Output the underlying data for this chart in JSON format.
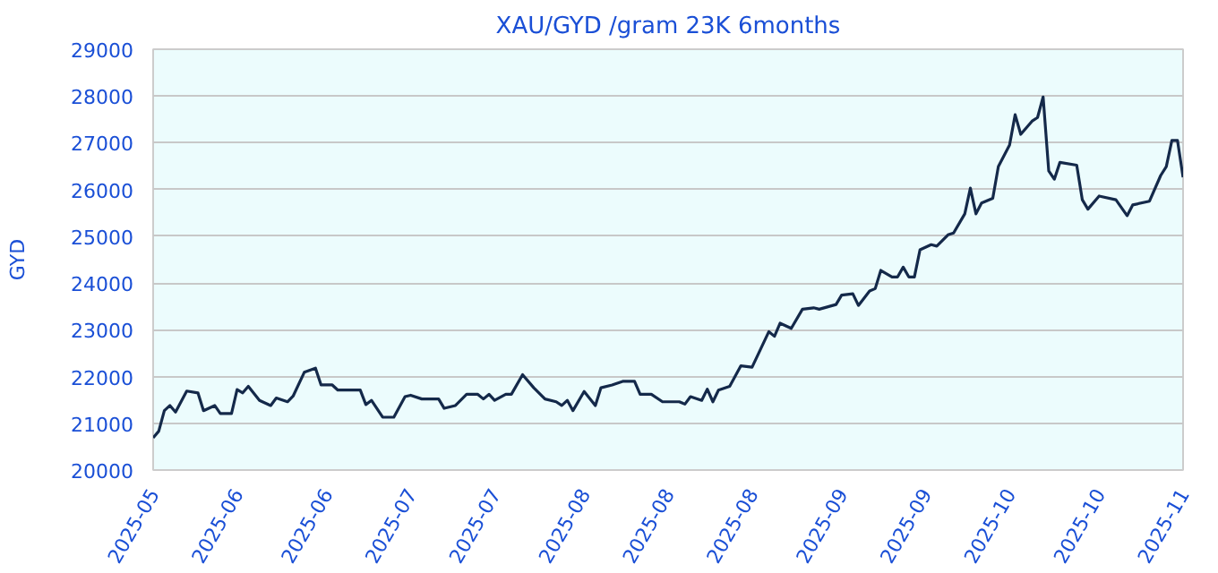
{
  "chart_data": {
    "type": "line",
    "title": "XAU/GYD /gram 23K 6months",
    "ylabel": "GYD",
    "xlim": [
      "2025-05-05",
      "2025-11-05"
    ],
    "ylim": [
      20000,
      29000
    ],
    "xticks": [
      {
        "value": "2025-05-05",
        "label": "2025-05"
      },
      {
        "value": "2025-05-20",
        "label": "2025-06"
      },
      {
        "value": "2025-06-05",
        "label": "2025-06"
      },
      {
        "value": "2025-06-20",
        "label": "2025-07"
      },
      {
        "value": "2025-07-05",
        "label": "2025-07"
      },
      {
        "value": "2025-07-21",
        "label": "2025-08"
      },
      {
        "value": "2025-08-05",
        "label": "2025-08"
      },
      {
        "value": "2025-08-20",
        "label": "2025-08"
      },
      {
        "value": "2025-09-05",
        "label": "2025-09"
      },
      {
        "value": "2025-09-20",
        "label": "2025-09"
      },
      {
        "value": "2025-10-05",
        "label": "2025-10"
      },
      {
        "value": "2025-10-21",
        "label": "2025-10"
      },
      {
        "value": "2025-11-05",
        "label": "2025-11"
      }
    ],
    "yticks": [
      20000,
      21000,
      22000,
      23000,
      24000,
      25000,
      26000,
      27000,
      28000,
      29000
    ],
    "grid": "y",
    "marker": "none",
    "line_style": "solid",
    "series": [
      {
        "color": "#14294a",
        "x": [
          "2025-05-05",
          "2025-05-06",
          "2025-05-07",
          "2025-05-08",
          "2025-05-09",
          "2025-05-11",
          "2025-05-13",
          "2025-05-14",
          "2025-05-16",
          "2025-05-17",
          "2025-05-19",
          "2025-05-20",
          "2025-05-21",
          "2025-05-22",
          "2025-05-24",
          "2025-05-26",
          "2025-05-27",
          "2025-05-29",
          "2025-05-30",
          "2025-06-01",
          "2025-06-03",
          "2025-06-04",
          "2025-06-06",
          "2025-06-07",
          "2025-06-11",
          "2025-06-12",
          "2025-06-13",
          "2025-06-15",
          "2025-06-17",
          "2025-06-19",
          "2025-06-20",
          "2025-06-22",
          "2025-06-25",
          "2025-06-26",
          "2025-06-28",
          "2025-06-30",
          "2025-07-02",
          "2025-07-03",
          "2025-07-04",
          "2025-07-05",
          "2025-07-07",
          "2025-07-08",
          "2025-07-10",
          "2025-07-12",
          "2025-07-14",
          "2025-07-16",
          "2025-07-17",
          "2025-07-18",
          "2025-07-19",
          "2025-07-21",
          "2025-07-23",
          "2025-07-24",
          "2025-07-26",
          "2025-07-28",
          "2025-07-30",
          "2025-07-31",
          "2025-08-02",
          "2025-08-04",
          "2025-08-07",
          "2025-08-08",
          "2025-08-09",
          "2025-08-11",
          "2025-08-12",
          "2025-08-13",
          "2025-08-14",
          "2025-08-16",
          "2025-08-18",
          "2025-08-20",
          "2025-08-23",
          "2025-08-24",
          "2025-08-25",
          "2025-08-27",
          "2025-08-29",
          "2025-08-31",
          "2025-09-01",
          "2025-09-04",
          "2025-09-05",
          "2025-09-07",
          "2025-09-08",
          "2025-09-10",
          "2025-09-11",
          "2025-09-12",
          "2025-09-14",
          "2025-09-15",
          "2025-09-16",
          "2025-09-17",
          "2025-09-18",
          "2025-09-19",
          "2025-09-21",
          "2025-09-22",
          "2025-09-24",
          "2025-09-25",
          "2025-09-27",
          "2025-09-28",
          "2025-09-29",
          "2025-09-30",
          "2025-10-02",
          "2025-10-03",
          "2025-10-05",
          "2025-10-06",
          "2025-10-07",
          "2025-10-09",
          "2025-10-10",
          "2025-10-11",
          "2025-10-12",
          "2025-10-13",
          "2025-10-14",
          "2025-10-17",
          "2025-10-18",
          "2025-10-19",
          "2025-10-21",
          "2025-10-24",
          "2025-10-26",
          "2025-10-27",
          "2025-10-30",
          "2025-11-01",
          "2025-11-02",
          "2025-11-03",
          "2025-11-04",
          "2025-11-05"
        ],
        "values": [
          20690,
          20830,
          21270,
          21380,
          21240,
          21690,
          21650,
          21270,
          21380,
          21210,
          21210,
          21720,
          21650,
          21790,
          21490,
          21380,
          21540,
          21460,
          21580,
          22090,
          22180,
          21820,
          21820,
          21710,
          21710,
          21400,
          21490,
          21130,
          21130,
          21570,
          21600,
          21520,
          21520,
          21320,
          21380,
          21620,
          21620,
          21520,
          21620,
          21490,
          21620,
          21620,
          22040,
          21760,
          21520,
          21460,
          21380,
          21490,
          21270,
          21680,
          21380,
          21760,
          21820,
          21900,
          21900,
          21620,
          21620,
          21460,
          21460,
          21410,
          21570,
          21490,
          21730,
          21460,
          21710,
          21790,
          22230,
          22200,
          22960,
          22860,
          23140,
          23030,
          23440,
          23470,
          23440,
          23540,
          23740,
          23770,
          23520,
          23830,
          23880,
          24270,
          24130,
          24130,
          24340,
          24130,
          24130,
          24710,
          24820,
          24790,
          25030,
          25070,
          25480,
          26030,
          25480,
          25710,
          25810,
          26490,
          26950,
          27600,
          27180,
          27460,
          27540,
          27980,
          26400,
          26220,
          26580,
          26520,
          25780,
          25580,
          25860,
          25780,
          25440,
          25670,
          25750,
          26300,
          26490,
          27050,
          27050,
          26260
        ]
      }
    ]
  }
}
